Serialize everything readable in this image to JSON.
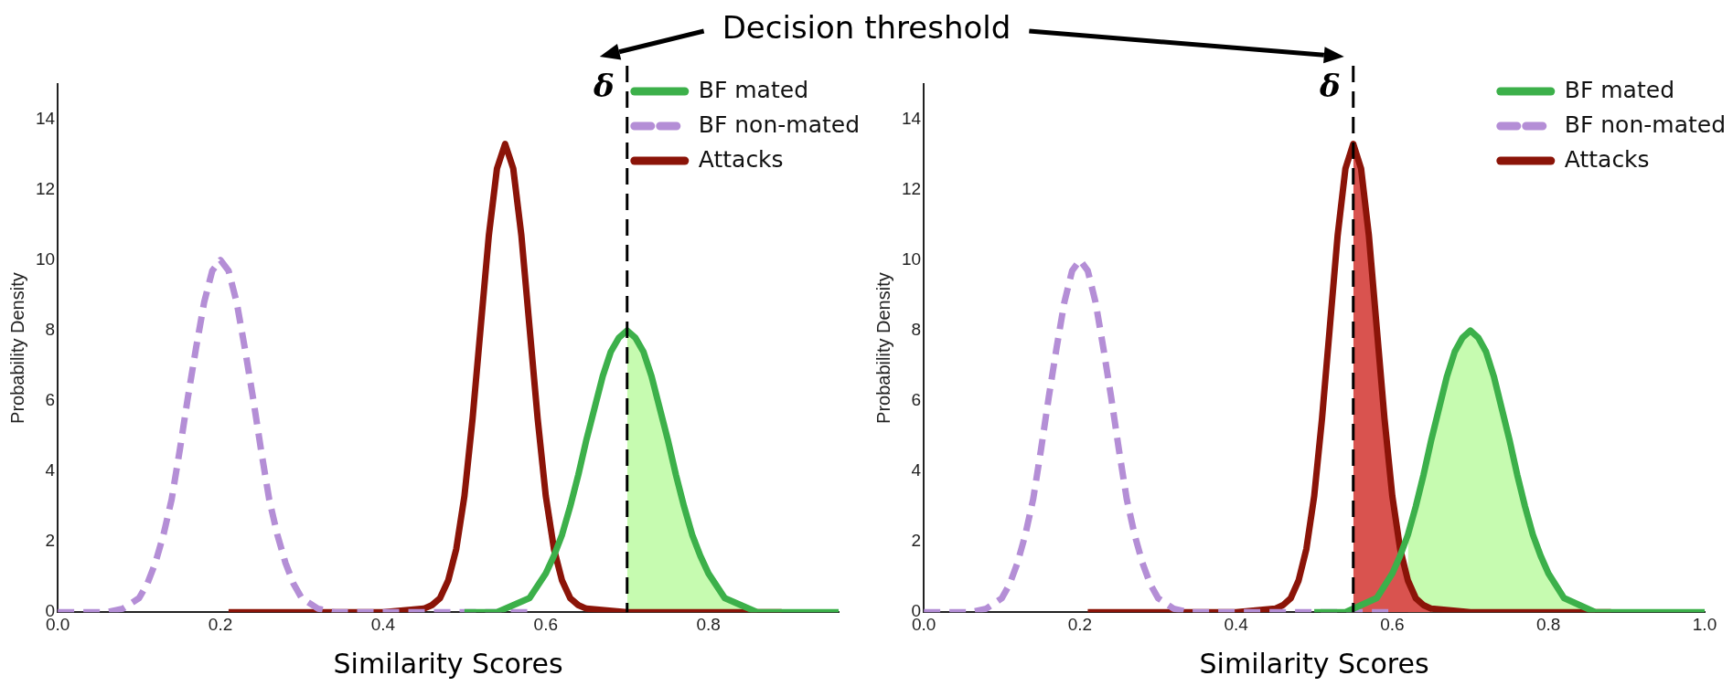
{
  "chart_data": [
    {
      "type": "line",
      "xlabel": "Similarity Scores",
      "ylabel": "Probability Density",
      "annotations": [
        "Decision threshold"
      ],
      "xlim": [
        0,
        0.96
      ],
      "ylim": [
        0,
        15
      ],
      "xticks": [
        {
          "value": 0,
          "label": "0.0"
        },
        {
          "value": 0.2,
          "label": "0.2"
        },
        {
          "value": 0.4,
          "label": "0.4"
        },
        {
          "value": 0.6,
          "label": "0.6"
        },
        {
          "value": 0.8,
          "label": "0.8"
        }
      ],
      "yticks": [
        0,
        2,
        4,
        6,
        8,
        10,
        12,
        14
      ],
      "grid": false,
      "legend": "top right",
      "marker": "none",
      "ref_lines": [
        {
          "axis": "x",
          "value": 0.7,
          "label": "δ",
          "line_style": "dashed",
          "color": "#000000"
        }
      ],
      "series": [
        {
          "type": "area",
          "color": "#c6fbb0",
          "x": [
            0.7,
            0.71,
            0.72,
            0.73,
            0.74,
            0.75,
            0.76,
            0.77,
            0.78,
            0.79,
            0.8,
            0.82,
            0.84,
            0.86
          ],
          "values": [
            8,
            7.8,
            7.4,
            6.7,
            5.8,
            4.9,
            3.9,
            3.0,
            2.2,
            1.6,
            1.1,
            0.4,
            0.2,
            0
          ]
        },
        {
          "name": "BF mated",
          "color": "#3cb04a",
          "line_style": "solid",
          "x": [
            0.5,
            0.54,
            0.56,
            0.58,
            0.6,
            0.61,
            0.62,
            0.63,
            0.64,
            0.65,
            0.66,
            0.67,
            0.68,
            0.69,
            0.7,
            0.71,
            0.72,
            0.73,
            0.74,
            0.75,
            0.76,
            0.77,
            0.78,
            0.79,
            0.8,
            0.82,
            0.84,
            0.86,
            0.96
          ],
          "values": [
            0,
            0,
            0.2,
            0.4,
            1.1,
            1.6,
            2.2,
            3.0,
            3.9,
            4.9,
            5.8,
            6.7,
            7.4,
            7.8,
            8,
            7.8,
            7.4,
            6.7,
            5.8,
            4.9,
            3.9,
            3.0,
            2.2,
            1.6,
            1.1,
            0.4,
            0.2,
            0,
            0
          ]
        },
        {
          "name": "BF non-mated",
          "color": "#b48ed6",
          "line_style": "dashed",
          "x": [
            0,
            0.06,
            0.08,
            0.1,
            0.11,
            0.12,
            0.13,
            0.14,
            0.15,
            0.16,
            0.17,
            0.18,
            0.19,
            0.2,
            0.21,
            0.22,
            0.23,
            0.24,
            0.25,
            0.26,
            0.27,
            0.28,
            0.29,
            0.3,
            0.32,
            0.34,
            0.58
          ],
          "values": [
            0,
            0,
            0.1,
            0.4,
            0.8,
            1.4,
            2.2,
            3.2,
            4.6,
            6.1,
            7.5,
            8.8,
            9.7,
            10,
            9.7,
            8.8,
            7.5,
            6.1,
            4.6,
            3.2,
            2.2,
            1.4,
            0.8,
            0.4,
            0.1,
            0,
            0
          ]
        },
        {
          "name": "Attacks",
          "color": "#8b1408",
          "line_style": "solid",
          "x": [
            0.21,
            0.4,
            0.45,
            0.46,
            0.47,
            0.48,
            0.49,
            0.5,
            0.51,
            0.52,
            0.53,
            0.54,
            0.55,
            0.56,
            0.57,
            0.58,
            0.59,
            0.6,
            0.61,
            0.62,
            0.63,
            0.64,
            0.65,
            0.7,
            0.89
          ],
          "values": [
            0,
            0,
            0.1,
            0.2,
            0.4,
            0.9,
            1.8,
            3.3,
            5.5,
            8.1,
            10.7,
            12.6,
            13.3,
            12.6,
            10.7,
            8.1,
            5.5,
            3.3,
            1.8,
            0.9,
            0.4,
            0.2,
            0.1,
            0,
            0
          ]
        }
      ]
    },
    {
      "type": "line",
      "xlabel": "Similarity Scores",
      "ylabel": "Probability Density",
      "xlim": [
        0,
        1
      ],
      "ylim": [
        0,
        15
      ],
      "xticks": [
        {
          "value": 0,
          "label": "0.0"
        },
        {
          "value": 0.2,
          "label": "0.2"
        },
        {
          "value": 0.4,
          "label": "0.4"
        },
        {
          "value": 0.6,
          "label": "0.6"
        },
        {
          "value": 0.8,
          "label": "0.8"
        },
        {
          "value": 1,
          "label": "1.0"
        }
      ],
      "yticks": [
        0,
        2,
        4,
        6,
        8,
        10,
        12,
        14
      ],
      "grid": false,
      "legend": "top right",
      "marker": "none",
      "ref_lines": [
        {
          "axis": "x",
          "value": 0.55,
          "label": "δ",
          "line_style": "dashed",
          "color": "#000000"
        }
      ],
      "series": [
        {
          "type": "area",
          "color": "#c6fbb0",
          "x": [
            0.62,
            0.63,
            0.64,
            0.65,
            0.66,
            0.67,
            0.68,
            0.69,
            0.7,
            0.71,
            0.72,
            0.73,
            0.74,
            0.75,
            0.76,
            0.77,
            0.78,
            0.79,
            0.8,
            0.82,
            0.84,
            0.86
          ],
          "values": [
            2.2,
            3.0,
            3.9,
            4.9,
            5.8,
            6.7,
            7.4,
            7.8,
            8,
            7.8,
            7.4,
            6.7,
            5.8,
            4.9,
            3.9,
            3.0,
            2.2,
            1.6,
            1.1,
            0.4,
            0.2,
            0
          ]
        },
        {
          "type": "area",
          "color": "#d9534f",
          "x": [
            0.55,
            0.56,
            0.57,
            0.58,
            0.59,
            0.6,
            0.61,
            0.62,
            0.63,
            0.64,
            0.65
          ],
          "values": [
            13.3,
            12.6,
            10.7,
            8.1,
            5.5,
            3.3,
            1.8,
            0.9,
            0.4,
            0.2,
            0.1
          ]
        },
        {
          "name": "BF mated",
          "color": "#3cb04a",
          "line_style": "solid",
          "x": [
            0.5,
            0.54,
            0.56,
            0.58,
            0.6,
            0.61,
            0.62,
            0.63,
            0.64,
            0.65,
            0.66,
            0.67,
            0.68,
            0.69,
            0.7,
            0.71,
            0.72,
            0.73,
            0.74,
            0.75,
            0.76,
            0.77,
            0.78,
            0.79,
            0.8,
            0.82,
            0.84,
            0.86,
            1.0
          ],
          "values": [
            0,
            0,
            0.2,
            0.4,
            1.1,
            1.6,
            2.2,
            3.0,
            3.9,
            4.9,
            5.8,
            6.7,
            7.4,
            7.8,
            8,
            7.8,
            7.4,
            6.7,
            5.8,
            4.9,
            3.9,
            3.0,
            2.2,
            1.6,
            1.1,
            0.4,
            0.2,
            0,
            0
          ]
        },
        {
          "name": "BF non-mated",
          "color": "#b48ed6",
          "line_style": "dashed",
          "x": [
            0,
            0.06,
            0.08,
            0.1,
            0.11,
            0.12,
            0.13,
            0.14,
            0.15,
            0.16,
            0.17,
            0.18,
            0.19,
            0.2,
            0.21,
            0.22,
            0.23,
            0.24,
            0.25,
            0.26,
            0.27,
            0.28,
            0.29,
            0.3,
            0.32,
            0.34,
            0.6
          ],
          "values": [
            0,
            0,
            0.1,
            0.4,
            0.8,
            1.4,
            2.2,
            3.2,
            4.6,
            6.1,
            7.5,
            8.8,
            9.7,
            10,
            9.7,
            8.8,
            7.5,
            6.1,
            4.6,
            3.2,
            2.2,
            1.4,
            0.8,
            0.4,
            0.1,
            0,
            0
          ]
        },
        {
          "name": "Attacks",
          "color": "#8b1408",
          "line_style": "solid",
          "x": [
            0.21,
            0.4,
            0.45,
            0.46,
            0.47,
            0.48,
            0.49,
            0.5,
            0.51,
            0.52,
            0.53,
            0.54,
            0.55,
            0.56,
            0.57,
            0.58,
            0.59,
            0.6,
            0.61,
            0.62,
            0.63,
            0.64,
            0.65,
            0.7,
            0.88
          ],
          "values": [
            0,
            0,
            0.1,
            0.2,
            0.4,
            0.9,
            1.8,
            3.3,
            5.5,
            8.1,
            10.7,
            12.6,
            13.3,
            12.6,
            10.7,
            8.1,
            5.5,
            3.3,
            1.8,
            0.9,
            0.4,
            0.2,
            0.1,
            0,
            0
          ]
        }
      ]
    }
  ]
}
